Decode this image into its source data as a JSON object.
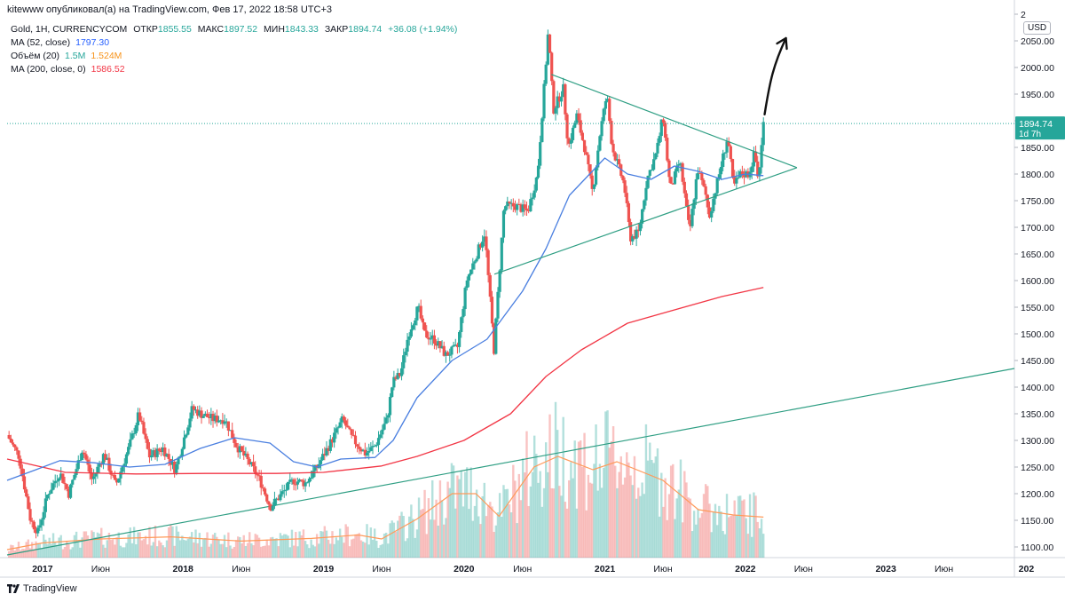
{
  "header": {
    "publish_line": "kitewww опубликовал(а) на TradingView.com, Фев 17, 2022 18:58 UTC+3"
  },
  "legend": {
    "symbol": "Gold, 1H, CURRENCYCOM",
    "open_label": "ОТКР",
    "open": "1855.55",
    "high_label": "МАКС",
    "high": "1897.52",
    "low_label": "МИН",
    "low": "1843.33",
    "close_label": "ЗАКР",
    "close": "1894.74",
    "change": "+36.08 (+1.94%)",
    "ma52_label": "MA (52, close)",
    "ma52_value": "1797.30",
    "volume_label": "Объём (20)",
    "volume_value": "1.5M",
    "volume_ma": "1.524M",
    "ma200_label": "MA (200, close, 0)",
    "ma200_value": "1586.52"
  },
  "price_scale": {
    "currency": "USD",
    "last_price": "1894.74",
    "countdown": "1d 7h"
  },
  "footer": {
    "brand": "TradingView"
  },
  "colors": {
    "up": "#26a69a",
    "down": "#ef5350",
    "ma52": "#4a7fe0",
    "ma200": "#f23645",
    "volume_ma": "#ff9a5a",
    "trendline": "#2e9e83"
  },
  "chart_data": {
    "type": "candlestick",
    "title": "Gold, 1H, CURRENCYCOM",
    "ylim": [
      1080,
      2090
    ],
    "yticks": [
      "1100.00",
      "1150.00",
      "1200.00",
      "1250.00",
      "1300.00",
      "1350.00",
      "1400.00",
      "1450.00",
      "1500.00",
      "1550.00",
      "1600.00",
      "1650.00",
      "1700.00",
      "1750.00",
      "1800.00",
      "1850.00",
      "1900.00",
      "1950.00",
      "2000.00",
      "2050.00",
      "2"
    ],
    "x_axis": {
      "range": [
        "2016-10-01",
        "2023-12-01"
      ],
      "ticks": [
        {
          "t": "2017-01-01",
          "label": "2017",
          "bold": true
        },
        {
          "t": "2017-06-01",
          "label": "Июн",
          "bold": false
        },
        {
          "t": "2018-01-01",
          "label": "2018",
          "bold": true
        },
        {
          "t": "2018-06-01",
          "label": "Июн",
          "bold": false
        },
        {
          "t": "2019-01-01",
          "label": "2019",
          "bold": true
        },
        {
          "t": "2019-06-01",
          "label": "Июн",
          "bold": false
        },
        {
          "t": "2020-01-01",
          "label": "2020",
          "bold": true
        },
        {
          "t": "2020-06-01",
          "label": "Июн",
          "bold": false
        },
        {
          "t": "2021-01-01",
          "label": "2021",
          "bold": true
        },
        {
          "t": "2021-06-01",
          "label": "Июн",
          "bold": false
        },
        {
          "t": "2022-01-01",
          "label": "2022",
          "bold": true
        },
        {
          "t": "2022-06-01",
          "label": "Июн",
          "bold": false
        },
        {
          "t": "2023-01-01",
          "label": "2023",
          "bold": true
        },
        {
          "t": "2023-06-01",
          "label": "Июн",
          "bold": false
        },
        {
          "t": "2024-01-01",
          "label": "202",
          "bold": true
        }
      ]
    },
    "close_path": [
      [
        "2016-10-01",
        1310
      ],
      [
        "2016-11-01",
        1270
      ],
      [
        "2016-12-01",
        1150
      ],
      [
        "2016-12-20",
        1128
      ],
      [
        "2017-01-15",
        1200
      ],
      [
        "2017-02-15",
        1240
      ],
      [
        "2017-03-10",
        1200
      ],
      [
        "2017-04-15",
        1285
      ],
      [
        "2017-05-10",
        1225
      ],
      [
        "2017-06-10",
        1275
      ],
      [
        "2017-07-10",
        1215
      ],
      [
        "2017-08-15",
        1290
      ],
      [
        "2017-09-08",
        1350
      ],
      [
        "2017-10-05",
        1270
      ],
      [
        "2017-11-10",
        1285
      ],
      [
        "2017-12-12",
        1245
      ],
      [
        "2018-01-25",
        1360
      ],
      [
        "2018-02-15",
        1350
      ],
      [
        "2018-03-20",
        1340
      ],
      [
        "2018-04-20",
        1340
      ],
      [
        "2018-05-20",
        1290
      ],
      [
        "2018-06-25",
        1255
      ],
      [
        "2018-07-20",
        1225
      ],
      [
        "2018-08-16",
        1175
      ],
      [
        "2018-09-15",
        1200
      ],
      [
        "2018-10-15",
        1225
      ],
      [
        "2018-11-15",
        1220
      ],
      [
        "2018-12-15",
        1250
      ],
      [
        "2019-01-15",
        1290
      ],
      [
        "2019-02-20",
        1340
      ],
      [
        "2019-03-15",
        1305
      ],
      [
        "2019-04-20",
        1275
      ],
      [
        "2019-05-15",
        1290
      ],
      [
        "2019-06-15",
        1340
      ],
      [
        "2019-06-30",
        1410
      ],
      [
        "2019-07-20",
        1425
      ],
      [
        "2019-08-10",
        1500
      ],
      [
        "2019-09-04",
        1550
      ],
      [
        "2019-09-20",
        1500
      ],
      [
        "2019-10-15",
        1490
      ],
      [
        "2019-11-15",
        1460
      ],
      [
        "2019-12-15",
        1475
      ],
      [
        "2020-01-08",
        1600
      ],
      [
        "2020-02-24",
        1690
      ],
      [
        "2020-03-19",
        1470
      ],
      [
        "2020-04-14",
        1740
      ],
      [
        "2020-05-15",
        1740
      ],
      [
        "2020-06-15",
        1730
      ],
      [
        "2020-07-10",
        1800
      ],
      [
        "2020-07-28",
        1970
      ],
      [
        "2020-08-07",
        2070
      ],
      [
        "2020-08-20",
        1920
      ],
      [
        "2020-09-15",
        1960
      ],
      [
        "2020-09-28",
        1850
      ],
      [
        "2020-10-20",
        1910
      ],
      [
        "2020-11-09",
        1850
      ],
      [
        "2020-11-30",
        1765
      ],
      [
        "2020-12-20",
        1880
      ],
      [
        "2021-01-06",
        1950
      ],
      [
        "2021-01-20",
        1850
      ],
      [
        "2021-02-20",
        1780
      ],
      [
        "2021-03-08",
        1680
      ],
      [
        "2021-03-30",
        1690
      ],
      [
        "2021-04-20",
        1790
      ],
      [
        "2021-05-15",
        1840
      ],
      [
        "2021-06-01",
        1910
      ],
      [
        "2021-06-20",
        1770
      ],
      [
        "2021-07-15",
        1825
      ],
      [
        "2021-08-09",
        1690
      ],
      [
        "2021-08-30",
        1810
      ],
      [
        "2021-09-20",
        1760
      ],
      [
        "2021-09-29",
        1720
      ],
      [
        "2021-10-25",
        1800
      ],
      [
        "2021-11-16",
        1870
      ],
      [
        "2021-12-01",
        1775
      ],
      [
        "2021-12-20",
        1800
      ],
      [
        "2022-01-10",
        1800
      ],
      [
        "2022-01-25",
        1840
      ],
      [
        "2022-02-03",
        1790
      ],
      [
        "2022-02-10",
        1835
      ],
      [
        "2022-02-17",
        1895
      ]
    ],
    "ma52": [
      [
        "2016-10-01",
        1225
      ],
      [
        "2016-12-15",
        1245
      ],
      [
        "2017-02-15",
        1262
      ],
      [
        "2017-05-15",
        1258
      ],
      [
        "2017-08-15",
        1250
      ],
      [
        "2017-11-15",
        1255
      ],
      [
        "2018-02-15",
        1285
      ],
      [
        "2018-05-15",
        1305
      ],
      [
        "2018-08-15",
        1295
      ],
      [
        "2018-10-15",
        1260
      ],
      [
        "2018-12-15",
        1250
      ],
      [
        "2019-02-15",
        1265
      ],
      [
        "2019-05-15",
        1268
      ],
      [
        "2019-07-01",
        1300
      ],
      [
        "2019-09-01",
        1380
      ],
      [
        "2019-12-01",
        1450
      ],
      [
        "2020-03-01",
        1490
      ],
      [
        "2020-06-01",
        1580
      ],
      [
        "2020-08-01",
        1660
      ],
      [
        "2020-10-01",
        1760
      ],
      [
        "2021-01-01",
        1830
      ],
      [
        "2021-03-01",
        1800
      ],
      [
        "2021-05-01",
        1790
      ],
      [
        "2021-07-01",
        1815
      ],
      [
        "2021-09-01",
        1805
      ],
      [
        "2021-11-01",
        1790
      ],
      [
        "2022-01-01",
        1800
      ],
      [
        "2022-02-17",
        1797
      ]
    ],
    "ma200": [
      [
        "2016-10-01",
        1265
      ],
      [
        "2017-03-01",
        1240
      ],
      [
        "2017-09-01",
        1237
      ],
      [
        "2018-03-01",
        1238
      ],
      [
        "2018-09-01",
        1238
      ],
      [
        "2019-01-01",
        1240
      ],
      [
        "2019-06-01",
        1252
      ],
      [
        "2019-09-01",
        1270
      ],
      [
        "2020-01-01",
        1300
      ],
      [
        "2020-05-01",
        1350
      ],
      [
        "2020-08-01",
        1420
      ],
      [
        "2020-11-01",
        1470
      ],
      [
        "2021-03-01",
        1520
      ],
      [
        "2021-07-01",
        1545
      ],
      [
        "2021-11-01",
        1570
      ],
      [
        "2022-02-17",
        1587
      ]
    ],
    "volume_ma_path": [
      [
        "2016-10-01",
        0.3
      ],
      [
        "2017-01-01",
        0.55
      ],
      [
        "2017-06-01",
        0.7
      ],
      [
        "2017-12-01",
        0.78
      ],
      [
        "2018-06-01",
        0.62
      ],
      [
        "2018-12-01",
        0.72
      ],
      [
        "2019-04-01",
        0.85
      ],
      [
        "2019-06-01",
        0.7
      ],
      [
        "2019-09-01",
        1.45
      ],
      [
        "2019-12-01",
        2.4
      ],
      [
        "2020-02-01",
        2.4
      ],
      [
        "2020-04-01",
        1.55
      ],
      [
        "2020-07-01",
        3.4
      ],
      [
        "2020-09-01",
        3.8
      ],
      [
        "2020-12-01",
        3.3
      ],
      [
        "2021-02-01",
        3.6
      ],
      [
        "2021-06-01",
        2.9
      ],
      [
        "2021-09-01",
        1.8
      ],
      [
        "2021-12-01",
        1.6
      ],
      [
        "2022-02-17",
        1.52
      ]
    ],
    "trendlines": [
      {
        "name": "upper",
        "from": [
          "2020-08-15",
          1987
        ],
        "to": [
          "2022-05-15",
          1812
        ]
      },
      {
        "name": "lower",
        "from": [
          "2020-03-20",
          1612
        ],
        "to": [
          "2022-05-15",
          1812
        ]
      },
      {
        "name": "long-term",
        "from": [
          "2016-10-01",
          1085
        ],
        "to": [
          "2023-12-01",
          1435
        ]
      }
    ],
    "horizontal_line": 1894.74,
    "annotation": "arrow-up"
  }
}
